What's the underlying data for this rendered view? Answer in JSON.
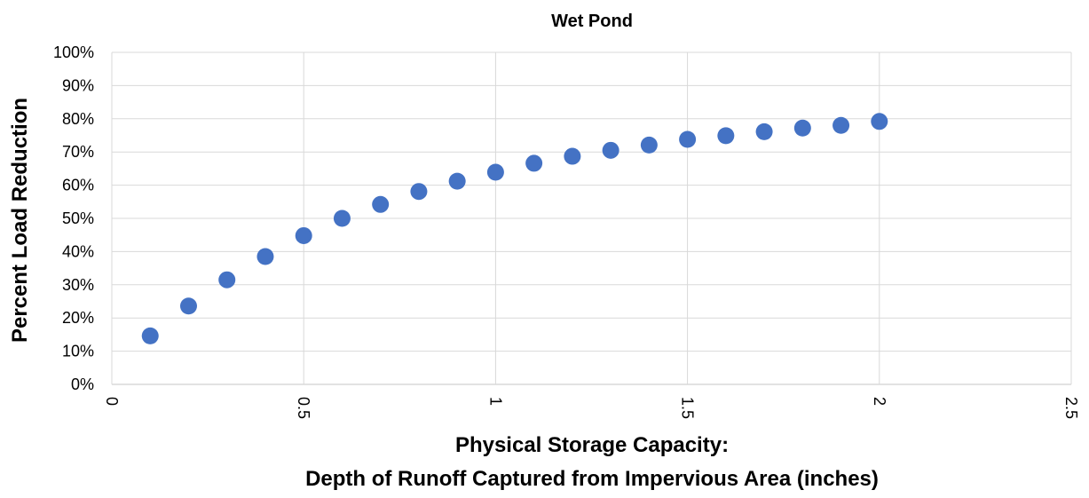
{
  "chart_data": {
    "type": "scatter",
    "title": "Wet Pond",
    "xlabel_line1": "Physical Storage Capacity:",
    "xlabel_line2": "Depth of Runoff Captured from Impervious Area (inches)",
    "ylabel": "Percent Load Reduction",
    "xlim": [
      0,
      2.5
    ],
    "ylim": [
      0,
      100
    ],
    "x_ticks": [
      0,
      0.5,
      1,
      1.5,
      2,
      2.5
    ],
    "x_tick_labels": [
      "0",
      "0.5",
      "1",
      "1.5",
      "2",
      "2.5"
    ],
    "y_ticks": [
      0,
      10,
      20,
      30,
      40,
      50,
      60,
      70,
      80,
      90,
      100
    ],
    "y_tick_labels": [
      "0%",
      "10%",
      "20%",
      "30%",
      "40%",
      "50%",
      "60%",
      "70%",
      "80%",
      "90%",
      "100%"
    ],
    "grid": true,
    "marker_color": "#4472C4",
    "x": [
      0.1,
      0.2,
      0.3,
      0.4,
      0.5,
      0.6,
      0.7,
      0.8,
      0.9,
      1.0,
      1.1,
      1.2,
      1.3,
      1.4,
      1.5,
      1.6,
      1.7,
      1.8,
      1.9,
      2.0
    ],
    "y": [
      14.6,
      23.6,
      31.5,
      38.5,
      44.8,
      50.0,
      54.2,
      58.1,
      61.2,
      63.9,
      66.6,
      68.7,
      70.5,
      72.1,
      73.8,
      74.9,
      76.1,
      77.2,
      78.0,
      79.2
    ]
  }
}
